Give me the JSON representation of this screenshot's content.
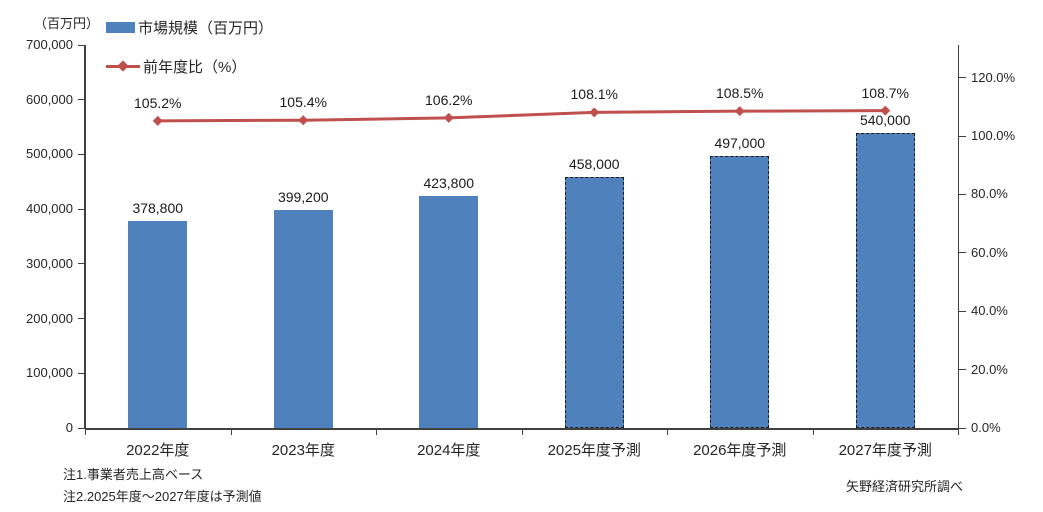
{
  "chart_data": {
    "type": "bar",
    "subtype": "combo-bar-line",
    "title": "",
    "categories": [
      "2022年度",
      "2023年度",
      "2024年度",
      "2025年度予測",
      "2026年度予測",
      "2027年度予測"
    ],
    "series": [
      {
        "name": "市場規模（百万円）",
        "type": "bar",
        "axis": "left",
        "color": "#4F81BD",
        "values": [
          378800,
          399200,
          423800,
          458000,
          497000,
          540000
        ],
        "labels": [
          "378,800",
          "399,200",
          "423,800",
          "458,000",
          "497,000",
          "540,000"
        ],
        "forecast_dashed": [
          false,
          false,
          false,
          true,
          true,
          true
        ]
      },
      {
        "name": "前年度比（%）",
        "type": "line",
        "axis": "right",
        "color": "#C0504D",
        "values": [
          105.2,
          105.4,
          106.2,
          108.1,
          108.5,
          108.7
        ],
        "labels": [
          "105.2%",
          "105.4%",
          "106.2%",
          "108.1%",
          "108.5%",
          "108.7%"
        ]
      }
    ],
    "left_axis": {
      "title": "（百万円）",
      "min": 0,
      "max": 700000,
      "step": 100000,
      "tick_labels": [
        "0",
        "100,000",
        "200,000",
        "300,000",
        "400,000",
        "500,000",
        "600,000",
        "700,000"
      ]
    },
    "right_axis": {
      "min": 0,
      "max": 120,
      "step": 20,
      "tick_labels": [
        "0.0%",
        "20.0%",
        "40.0%",
        "60.0%",
        "80.0%",
        "100.0%",
        "120.0%"
      ]
    },
    "grid": false,
    "legend_position": "top-left"
  },
  "notes": [
    "注1.事業者売上高ベース",
    "注2.2025年度～2027年度は予測値"
  ],
  "source": "矢野経済研究所調べ"
}
